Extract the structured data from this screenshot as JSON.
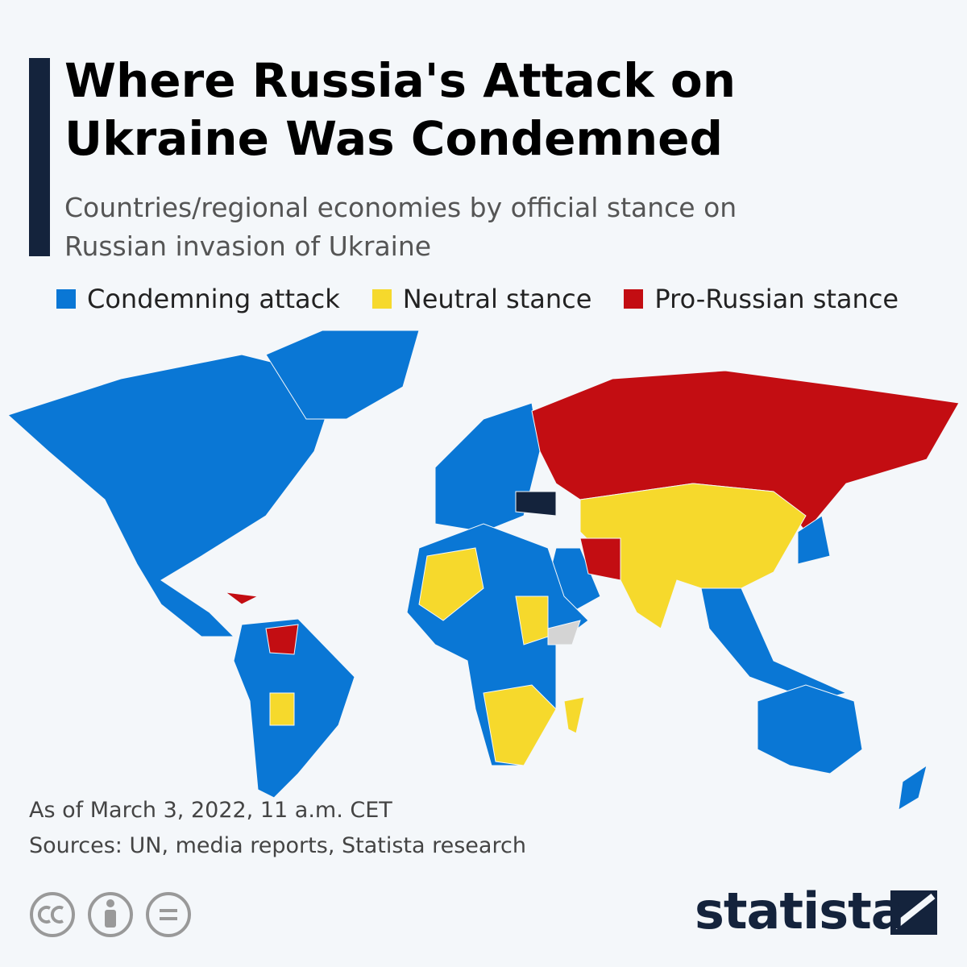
{
  "header": {
    "title": "Where Russia's Attack on Ukraine Was Condemned",
    "subtitle": "Countries/regional economies by official stance on Russian invasion of Ukraine"
  },
  "legend": [
    {
      "label": "Condemning attack",
      "color": "#0a77d5"
    },
    {
      "label": "Neutral stance",
      "color": "#f6d92c"
    },
    {
      "label": "Pro-Russian stance",
      "color": "#c30d12"
    }
  ],
  "footer": {
    "date_note": "As of March 3, 2022, 11 a.m. CET",
    "sources": "Sources: UN, media reports, Statista research",
    "brand": "statista"
  }
}
